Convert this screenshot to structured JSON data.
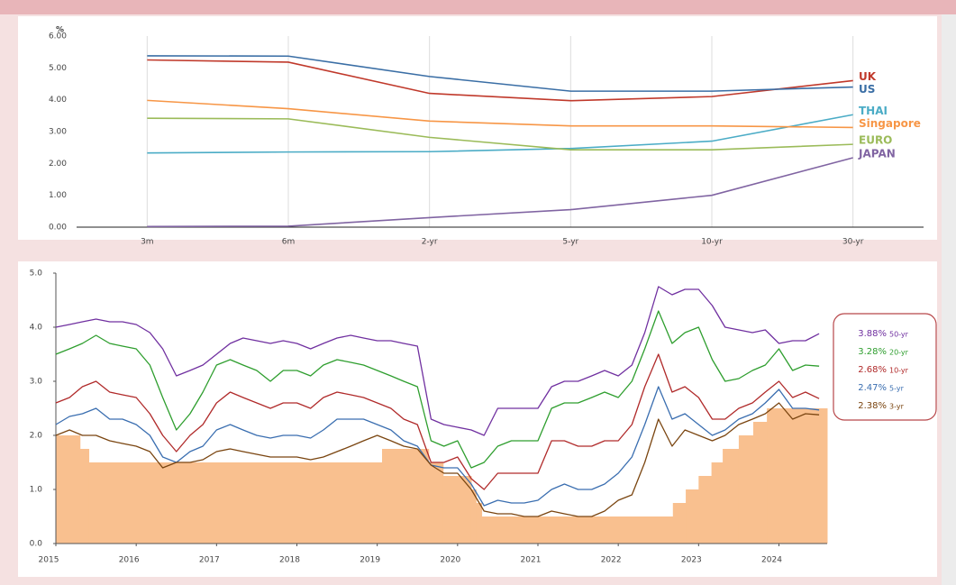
{
  "chart_data": [
    {
      "type": "line",
      "y_label": "%",
      "categories": [
        "3m",
        "6m",
        "2-yr",
        "5-yr",
        "10-yr",
        "30-yr"
      ],
      "ylim": [
        0,
        6
      ],
      "yticks": [
        {
          "value": 0,
          "label": "0.00"
        },
        {
          "value": 1,
          "label": "1.00"
        },
        {
          "value": 2,
          "label": "2.00"
        },
        {
          "value": 3,
          "label": "3.00"
        },
        {
          "value": 4,
          "label": "4.00"
        },
        {
          "value": 5,
          "label": "5.00"
        },
        {
          "value": 6,
          "label": "6.00"
        }
      ],
      "grid": "x",
      "legend": "line-end",
      "series": [
        {
          "name": "UK",
          "color": "#c0392b",
          "values": [
            5.25,
            5.18,
            4.2,
            3.97,
            4.1,
            4.6
          ]
        },
        {
          "name": "US",
          "color": "#3a6ea5",
          "values": [
            5.38,
            5.37,
            4.73,
            4.27,
            4.27,
            4.4
          ]
        },
        {
          "name": "THAI",
          "color": "#4bacc6",
          "values": [
            2.33,
            2.36,
            2.37,
            2.47,
            2.7,
            3.53
          ]
        },
        {
          "name": "Singapore",
          "color": "#f79646",
          "values": [
            3.98,
            3.72,
            3.33,
            3.18,
            3.18,
            3.13
          ]
        },
        {
          "name": "EURO",
          "color": "#9bbb59",
          "values": [
            3.42,
            3.4,
            2.82,
            2.43,
            2.43,
            2.6
          ]
        },
        {
          "name": "JAPAN",
          "color": "#8064a2",
          "values": [
            0.02,
            0.03,
            0.3,
            0.55,
            1.0,
            2.18
          ]
        }
      ]
    },
    {
      "type": "line",
      "xlim": [
        2015,
        2024.6
      ],
      "xticks": [
        2015,
        2016,
        2017,
        2018,
        2019,
        2020,
        2021,
        2022,
        2023,
        2024
      ],
      "ylim": [
        0,
        5
      ],
      "yticks": [
        {
          "value": 0,
          "label": "0.0"
        },
        {
          "value": 1,
          "label": "1.0"
        },
        {
          "value": 2,
          "label": "2.0"
        },
        {
          "value": 3,
          "label": "3.0"
        },
        {
          "value": 4,
          "label": "4.0"
        },
        {
          "value": 5,
          "label": "5.0"
        }
      ],
      "grid": false,
      "legend": "right",
      "x": [
        2015,
        2015.17,
        2015.33,
        2015.5,
        2015.67,
        2015.83,
        2016,
        2016.17,
        2016.33,
        2016.5,
        2016.67,
        2016.83,
        2017,
        2017.17,
        2017.33,
        2017.5,
        2017.67,
        2017.83,
        2018,
        2018.17,
        2018.33,
        2018.5,
        2018.67,
        2018.83,
        2019,
        2019.17,
        2019.33,
        2019.5,
        2019.67,
        2019.83,
        2020,
        2020.17,
        2020.33,
        2020.5,
        2020.67,
        2020.83,
        2021,
        2021.17,
        2021.33,
        2021.5,
        2021.67,
        2021.83,
        2022,
        2022.17,
        2022.33,
        2022.5,
        2022.67,
        2022.83,
        2023,
        2023.17,
        2023.33,
        2023.5,
        2023.67,
        2023.83,
        2024,
        2024.17,
        2024.33,
        2024.5
      ],
      "series": [
        {
          "name": "50-yr",
          "end_label": "3.88%",
          "color": "#7030a0",
          "values": [
            4.0,
            4.05,
            4.1,
            4.15,
            4.1,
            4.1,
            4.05,
            3.9,
            3.6,
            3.1,
            3.2,
            3.3,
            3.5,
            3.7,
            3.8,
            3.75,
            3.7,
            3.75,
            3.7,
            3.6,
            3.7,
            3.8,
            3.85,
            3.8,
            3.75,
            3.75,
            3.7,
            3.65,
            2.3,
            2.2,
            2.15,
            2.1,
            2.0,
            2.5,
            2.5,
            2.5,
            2.5,
            2.9,
            3.0,
            3.0,
            3.1,
            3.2,
            3.1,
            3.3,
            3.9,
            4.75,
            4.6,
            4.7,
            4.7,
            4.4,
            4.0,
            3.95,
            3.9,
            3.95,
            3.7,
            3.75,
            3.75,
            3.88
          ]
        },
        {
          "name": "20-yr",
          "end_label": "3.28%",
          "color": "#2e9e2e",
          "values": [
            3.5,
            3.6,
            3.7,
            3.85,
            3.7,
            3.65,
            3.6,
            3.3,
            2.7,
            2.1,
            2.4,
            2.8,
            3.3,
            3.4,
            3.3,
            3.2,
            3.0,
            3.2,
            3.2,
            3.1,
            3.3,
            3.4,
            3.35,
            3.3,
            3.2,
            3.1,
            3.0,
            2.9,
            1.9,
            1.8,
            1.9,
            1.4,
            1.5,
            1.8,
            1.9,
            1.9,
            1.9,
            2.5,
            2.6,
            2.6,
            2.7,
            2.8,
            2.7,
            3.0,
            3.6,
            4.3,
            3.7,
            3.9,
            4.0,
            3.4,
            3.0,
            3.05,
            3.2,
            3.3,
            3.6,
            3.2,
            3.3,
            3.28
          ]
        },
        {
          "name": "10-yr",
          "end_label": "2.68%",
          "color": "#b02a2a",
          "values": [
            2.6,
            2.7,
            2.9,
            3.0,
            2.8,
            2.75,
            2.7,
            2.4,
            2.0,
            1.7,
            2.0,
            2.2,
            2.6,
            2.8,
            2.7,
            2.6,
            2.5,
            2.6,
            2.6,
            2.5,
            2.7,
            2.8,
            2.75,
            2.7,
            2.6,
            2.5,
            2.3,
            2.2,
            1.5,
            1.5,
            1.6,
            1.2,
            1.0,
            1.3,
            1.3,
            1.3,
            1.3,
            1.9,
            1.9,
            1.8,
            1.8,
            1.9,
            1.9,
            2.2,
            2.9,
            3.5,
            2.8,
            2.9,
            2.7,
            2.3,
            2.3,
            2.5,
            2.6,
            2.8,
            3.0,
            2.7,
            2.8,
            2.68
          ]
        },
        {
          "name": "5-yr",
          "end_label": "2.47%",
          "color": "#3a6eb0",
          "values": [
            2.2,
            2.35,
            2.4,
            2.5,
            2.3,
            2.3,
            2.2,
            2.0,
            1.6,
            1.5,
            1.7,
            1.8,
            2.1,
            2.2,
            2.1,
            2.0,
            1.95,
            2.0,
            2.0,
            1.95,
            2.1,
            2.3,
            2.3,
            2.3,
            2.2,
            2.1,
            1.9,
            1.8,
            1.45,
            1.4,
            1.4,
            1.1,
            0.7,
            0.8,
            0.75,
            0.75,
            0.8,
            1.0,
            1.1,
            1.0,
            1.0,
            1.1,
            1.3,
            1.6,
            2.2,
            2.9,
            2.3,
            2.4,
            2.2,
            2.0,
            2.1,
            2.3,
            2.4,
            2.6,
            2.85,
            2.5,
            2.5,
            2.47
          ]
        },
        {
          "name": "3-yr",
          "end_label": "2.38%",
          "color": "#7a4510",
          "values": [
            2.0,
            2.1,
            2.0,
            2.0,
            1.9,
            1.85,
            1.8,
            1.7,
            1.4,
            1.5,
            1.5,
            1.55,
            1.7,
            1.75,
            1.7,
            1.65,
            1.6,
            1.6,
            1.6,
            1.55,
            1.6,
            1.7,
            1.8,
            1.9,
            2.0,
            1.9,
            1.8,
            1.75,
            1.45,
            1.3,
            1.3,
            1.0,
            0.6,
            0.55,
            0.55,
            0.5,
            0.5,
            0.6,
            0.55,
            0.5,
            0.5,
            0.6,
            0.8,
            0.9,
            1.5,
            2.3,
            1.8,
            2.1,
            2.0,
            1.9,
            2.0,
            2.2,
            2.3,
            2.4,
            2.6,
            2.3,
            2.4,
            2.38
          ]
        }
      ],
      "area": {
        "color": "#f9c08f",
        "x": [
          2015,
          2015.3,
          2015.41,
          2019.06,
          2019.64,
          2019.82,
          2020.17,
          2020.23,
          2020.3,
          2022.68,
          2022.84,
          2023.0,
          2023.16,
          2023.3,
          2023.5,
          2023.68,
          2023.85
        ],
        "values": [
          2.0,
          1.75,
          1.5,
          1.75,
          1.5,
          1.25,
          1.0,
          0.75,
          0.5,
          0.75,
          1.0,
          1.25,
          1.5,
          1.75,
          2.0,
          2.25,
          2.5
        ]
      }
    }
  ]
}
